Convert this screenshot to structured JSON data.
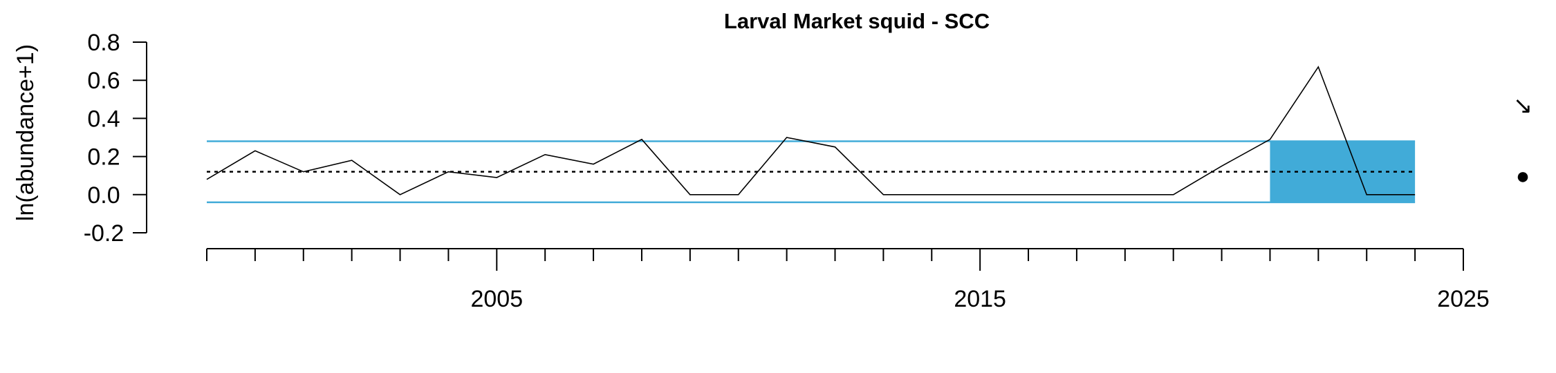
{
  "chart_data": {
    "type": "line",
    "title": "Larval Market squid - SCC",
    "ylabel": "ln(abundance+1)",
    "xlabel": "",
    "xlim": [
      1999,
      2025
    ],
    "ylim": [
      -0.2,
      0.8
    ],
    "y_ticks": [
      0.8,
      0.6,
      0.4,
      0.2,
      0.0,
      -0.2
    ],
    "y_tick_labels": [
      "0.8",
      "0.6",
      "0.4",
      "0.2",
      "0.0",
      "-0.2"
    ],
    "x_major_ticks": [
      2005,
      2015,
      2025
    ],
    "x_minor_ticks": [
      1999,
      2000,
      2001,
      2002,
      2003,
      2004,
      2006,
      2007,
      2008,
      2009,
      2010,
      2011,
      2012,
      2013,
      2014,
      2016,
      2017,
      2018,
      2019,
      2020,
      2021,
      2022,
      2023,
      2024
    ],
    "x_tick_labels": [
      "2005",
      "2015",
      "2025"
    ],
    "series": [
      {
        "x": [
          1999,
          2000,
          2001,
          2002,
          2003,
          2004,
          2005,
          2006,
          2007,
          2008,
          2009,
          2010,
          2011,
          2012,
          2013,
          2014,
          2015,
          2016,
          2017,
          2018,
          2019,
          2020,
          2021,
          2022,
          2023,
          2024
        ],
        "y": [
          0.08,
          0.23,
          0.12,
          0.18,
          0.0,
          0.12,
          0.09,
          0.21,
          0.16,
          0.29,
          0.0,
          0.0,
          0.3,
          0.25,
          0.0,
          0.0,
          0.0,
          0.0,
          0.0,
          0.0,
          0.0,
          0.15,
          0.29,
          0.67,
          0.0,
          0.0
        ],
        "color": "#000000"
      }
    ],
    "mean": 0.12,
    "upper_sd": 0.28,
    "lower_sd": -0.04,
    "band_color": "#41abd8",
    "shaded_period": [
      2021,
      2024
    ],
    "trend_symbol": "↘",
    "mean_symbol": "●"
  }
}
